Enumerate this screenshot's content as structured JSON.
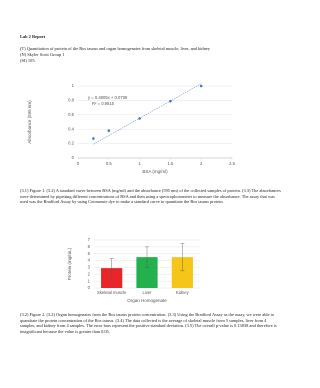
{
  "document": {
    "title": "Lab 2 Report",
    "header": [
      "(T) Quantitation of protein of the Bos taurus and organ homogenates from skeletal muscle, liver, and kidney",
      "(N) Skyler Scott Group 1",
      "(SI) 105."
    ],
    "caption1": "(3.1) Figure 1. (3.2) A standard curve between BSA (mg/ml) and the absorbance (595 nm) of the collected samples of protein. (3.3) The absorbances were determined by pipetting different concentrations of BSA and then using a spectrophotometer to measure the absorbance. The assay that was used was the Bradford Assay by using Coomassie dye to make a standard curve to quantitate the Bos taurus protein.",
    "caption2": "(3.2) Figure 2. (3.2) Organ homogenates from the Bos taurus protein concentration. (3.3) Using the Bradford Assay as the assay, we were able to quantitate the protein concentration of the Bos taurus. (3.4) The data collected is the average of skeletal muscle from 5 samples, liver from 4 samples, and kidney from 4 samples. The error bars represent the positive standard deviation. (3.5) The overall p-value is 0.13838 and therefore is insignificant because the value is greater than 0.05."
  },
  "chart_data": [
    {
      "type": "scatter",
      "x_label": "BSA (mg/ml)",
      "y_label": "Absorbance (595 nm)",
      "x": [
        0.25,
        0.5,
        1,
        1.5,
        2
      ],
      "values": [
        0.27,
        0.38,
        0.55,
        0.79,
        1.0
      ],
      "color": "#4472c4",
      "trendline": {
        "slope": 0.4805,
        "intercept": 0.0708,
        "equation": "y = 0.4805x + 0.0708",
        "r2": "R² = 0.9815"
      },
      "xlim": [
        0,
        2.5
      ],
      "xticks": [
        0,
        0.5,
        1,
        1.5,
        2,
        2.5
      ],
      "ylim": [
        0,
        1
      ],
      "yticks": [
        0,
        0.2,
        0.4,
        0.6,
        0.8,
        1
      ],
      "grid": true
    },
    {
      "type": "bar",
      "x_label": "Organ Homogenate",
      "y_label": "Protein (mg/mL)",
      "categories": [
        "Skeletal muscle",
        "Liver",
        "Kidney"
      ],
      "values": [
        2.9,
        4.5,
        4.5
      ],
      "errors": [
        1.4,
        1.5,
        2.0
      ],
      "colors": [
        "#e8262a",
        "#22b14c",
        "#f5c518"
      ],
      "ylim": [
        0,
        7
      ],
      "yticks": [
        0,
        1,
        2,
        3,
        4,
        5,
        6,
        7
      ],
      "grid": true
    }
  ]
}
